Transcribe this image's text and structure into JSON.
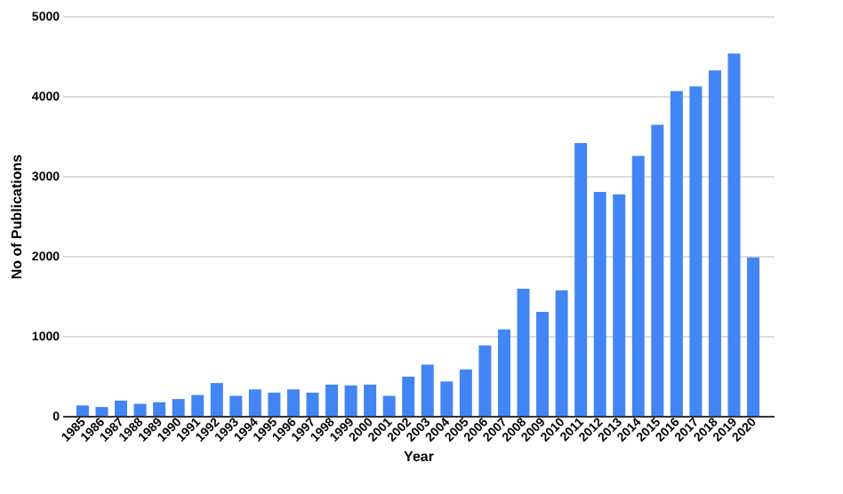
{
  "chart_data": {
    "type": "bar",
    "xlabel": "Year",
    "ylabel": "No of Publications",
    "categories": [
      "1985",
      "1986",
      "1987",
      "1988",
      "1989",
      "1990",
      "1991",
      "1992",
      "1993",
      "1994",
      "1995",
      "1996",
      "1997",
      "1998",
      "1999",
      "2000",
      "2001",
      "2002",
      "2003",
      "2004",
      "2005",
      "2006",
      "2007",
      "2008",
      "2009",
      "2010",
      "2011",
      "2012",
      "2013",
      "2014",
      "2015",
      "2016",
      "2017",
      "2018",
      "2019",
      "2020"
    ],
    "values": [
      130,
      110,
      190,
      150,
      170,
      210,
      260,
      410,
      250,
      330,
      290,
      330,
      290,
      390,
      380,
      390,
      250,
      490,
      640,
      430,
      580,
      880,
      1080,
      1590,
      1300,
      1570,
      3410,
      2800,
      2770,
      3250,
      3640,
      4060,
      4120,
      4320,
      4530,
      1980
    ],
    "color": "#4285f4",
    "ylim": [
      0,
      5000
    ],
    "yticks": [
      0,
      1000,
      2000,
      3000,
      4000,
      5000
    ],
    "grid": "y"
  }
}
